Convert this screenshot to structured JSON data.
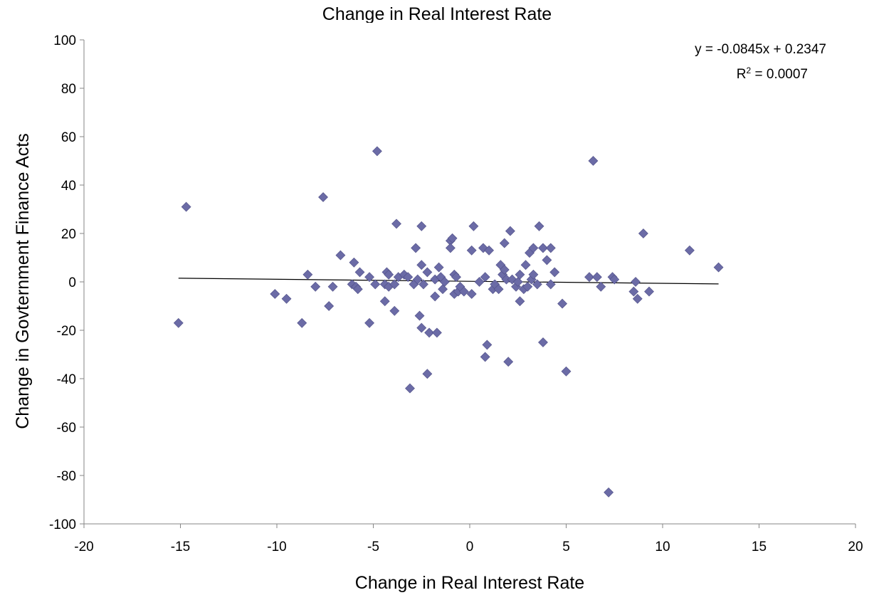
{
  "chart_data": {
    "type": "scatter",
    "title": "Change in Real Interest Rate",
    "xlabel": "Change in Real Interest Rate",
    "ylabel": "Change in Govternment  Finance Acts",
    "xlim": [
      -20,
      20
    ],
    "ylim": [
      -100,
      100
    ],
    "x_ticks": [
      -20,
      -15,
      -10,
      -5,
      0,
      5,
      10,
      15,
      20
    ],
    "y_ticks": [
      -100,
      -80,
      -60,
      -40,
      -20,
      0,
      20,
      40,
      60,
      80,
      100
    ],
    "grid": false,
    "legend": "none",
    "marker_color": "#6B6BA6",
    "trendline": {
      "slope": -0.0845,
      "intercept": 0.2347,
      "x_range": [
        -15.1,
        12.9
      ],
      "equation_label": "y = -0.0845x + 0.2347",
      "r2_prefix": "R",
      "r2_superscript": "2",
      "r2_value": " = 0.0007"
    },
    "points": [
      [
        -15.1,
        -17
      ],
      [
        -14.7,
        31
      ],
      [
        -10.1,
        -5
      ],
      [
        -9.5,
        -7
      ],
      [
        -8.7,
        -17
      ],
      [
        -8.4,
        3
      ],
      [
        -8.0,
        -2
      ],
      [
        -7.6,
        35
      ],
      [
        -7.3,
        -10
      ],
      [
        -7.1,
        -2
      ],
      [
        -6.7,
        11
      ],
      [
        -6.1,
        -1
      ],
      [
        -6.0,
        8
      ],
      [
        -5.9,
        -2
      ],
      [
        -5.8,
        -3
      ],
      [
        -5.7,
        4
      ],
      [
        -5.2,
        -17
      ],
      [
        -5.2,
        2
      ],
      [
        -4.9,
        -1
      ],
      [
        -4.8,
        54
      ],
      [
        -4.4,
        -1
      ],
      [
        -4.4,
        -8
      ],
      [
        -4.3,
        4
      ],
      [
        -4.2,
        3
      ],
      [
        -4.2,
        -2
      ],
      [
        -3.9,
        -1
      ],
      [
        -3.9,
        -12
      ],
      [
        -3.8,
        24
      ],
      [
        -3.7,
        2
      ],
      [
        -3.4,
        3
      ],
      [
        -3.2,
        2
      ],
      [
        -3.1,
        -44
      ],
      [
        -2.9,
        -1
      ],
      [
        -2.8,
        14
      ],
      [
        -2.7,
        1
      ],
      [
        -2.6,
        -14
      ],
      [
        -2.5,
        23
      ],
      [
        -2.5,
        7
      ],
      [
        -2.5,
        -19
      ],
      [
        -2.4,
        -1
      ],
      [
        -2.2,
        -38
      ],
      [
        -2.2,
        4
      ],
      [
        -2.1,
        -21
      ],
      [
        -1.8,
        1
      ],
      [
        -1.8,
        -6
      ],
      [
        -1.7,
        -21
      ],
      [
        -1.6,
        6
      ],
      [
        -1.5,
        2
      ],
      [
        -1.4,
        -3
      ],
      [
        -1.3,
        0
      ],
      [
        -1.0,
        17
      ],
      [
        -1.0,
        14
      ],
      [
        -0.9,
        18
      ],
      [
        -0.8,
        -5
      ],
      [
        -0.8,
        3
      ],
      [
        -0.7,
        2
      ],
      [
        -0.6,
        -4
      ],
      [
        -0.5,
        -2
      ],
      [
        -0.3,
        -4
      ],
      [
        0.1,
        -5
      ],
      [
        0.1,
        13
      ],
      [
        0.2,
        23
      ],
      [
        0.5,
        0
      ],
      [
        0.7,
        14
      ],
      [
        0.8,
        2
      ],
      [
        0.8,
        -31
      ],
      [
        0.9,
        -26
      ],
      [
        1.0,
        13
      ],
      [
        1.2,
        -3
      ],
      [
        1.3,
        -1
      ],
      [
        1.5,
        -3
      ],
      [
        1.6,
        7
      ],
      [
        1.7,
        3
      ],
      [
        1.8,
        5
      ],
      [
        1.8,
        16
      ],
      [
        1.9,
        1
      ],
      [
        2.0,
        -33
      ],
      [
        2.1,
        21
      ],
      [
        2.2,
        1
      ],
      [
        2.4,
        -2
      ],
      [
        2.5,
        0
      ],
      [
        2.6,
        3
      ],
      [
        2.6,
        -8
      ],
      [
        2.8,
        -3
      ],
      [
        2.9,
        7
      ],
      [
        3.0,
        -2
      ],
      [
        3.1,
        12
      ],
      [
        3.2,
        1
      ],
      [
        3.3,
        14
      ],
      [
        3.3,
        3
      ],
      [
        3.5,
        -1
      ],
      [
        3.6,
        23
      ],
      [
        3.8,
        -25
      ],
      [
        3.8,
        14
      ],
      [
        4.0,
        9
      ],
      [
        4.2,
        14
      ],
      [
        4.2,
        -1
      ],
      [
        4.4,
        4
      ],
      [
        4.8,
        -9
      ],
      [
        5.0,
        -37
      ],
      [
        6.2,
        2
      ],
      [
        6.4,
        50
      ],
      [
        6.6,
        2
      ],
      [
        6.8,
        -2
      ],
      [
        7.2,
        -87
      ],
      [
        7.4,
        2
      ],
      [
        7.5,
        1
      ],
      [
        8.5,
        -4
      ],
      [
        8.6,
        0
      ],
      [
        8.7,
        -7
      ],
      [
        9.0,
        20
      ],
      [
        9.3,
        -4
      ],
      [
        11.4,
        13
      ],
      [
        12.9,
        6
      ]
    ]
  }
}
